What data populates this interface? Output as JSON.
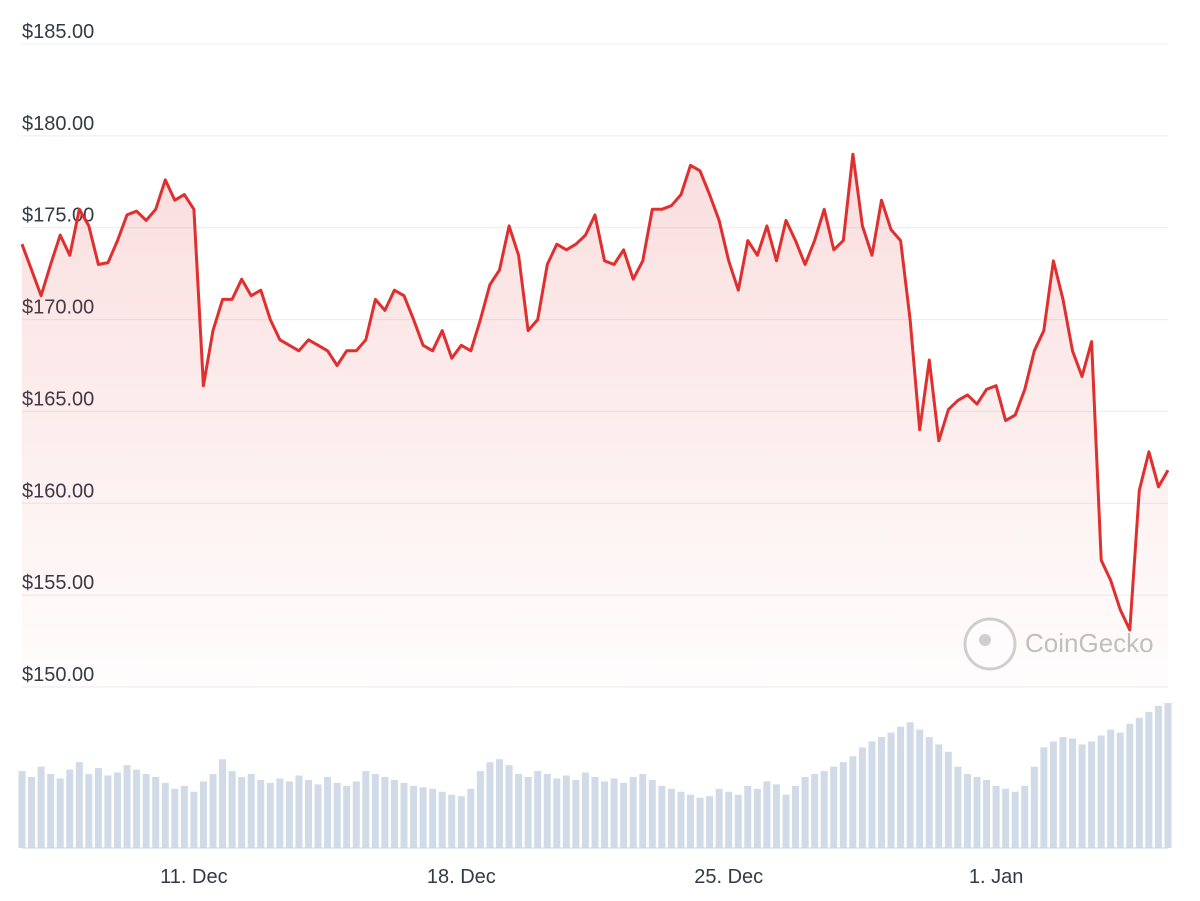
{
  "chart_data": {
    "type": "line",
    "watermark": "CoinGecko",
    "categories": [
      null,
      null,
      null,
      null,
      null,
      null,
      null,
      null,
      null,
      null,
      null,
      null,
      null,
      null,
      null,
      null,
      null,
      null,
      "11. Dec",
      null,
      null,
      null,
      null,
      null,
      null,
      null,
      null,
      null,
      null,
      null,
      null,
      null,
      null,
      null,
      null,
      null,
      null,
      null,
      null,
      null,
      null,
      null,
      null,
      null,
      null,
      null,
      "18. Dec",
      null,
      null,
      null,
      null,
      null,
      null,
      null,
      null,
      null,
      null,
      null,
      null,
      null,
      null,
      null,
      null,
      null,
      null,
      null,
      null,
      null,
      null,
      null,
      null,
      null,
      null,
      null,
      "25. Dec",
      null,
      null,
      null,
      null,
      null,
      null,
      null,
      null,
      null,
      null,
      null,
      null,
      null,
      null,
      null,
      null,
      null,
      null,
      null,
      null,
      null,
      null,
      null,
      null,
      null,
      null,
      null,
      "1. Jan",
      null,
      null,
      null,
      null,
      null,
      null,
      null,
      null,
      null,
      null,
      null,
      null,
      null,
      null,
      null,
      null,
      null,
      null
    ],
    "series": [
      {
        "color": "#e02f2f",
        "values": [
          174.1,
          172.7,
          171.3,
          173,
          174.6,
          173.5,
          176,
          175.1,
          173,
          173.1,
          174.3,
          175.7,
          175.9,
          175.4,
          176,
          177.6,
          176.5,
          176.8,
          176,
          166.4,
          169.4,
          171.1,
          171.1,
          172.2,
          171.3,
          171.6,
          170,
          168.9,
          168.6,
          168.3,
          168.9,
          168.6,
          168.3,
          167.5,
          168.3,
          168.3,
          168.9,
          171.1,
          170.5,
          171.6,
          171.3,
          170,
          168.6,
          168.3,
          169.4,
          167.9,
          168.6,
          168.3,
          170,
          171.9,
          172.7,
          175.1,
          173.5,
          169.4,
          170,
          173,
          174.1,
          173.8,
          174.1,
          174.6,
          175.7,
          173.2,
          173,
          173.8,
          172.2,
          173.2,
          176,
          176,
          176.2,
          176.8,
          178.4,
          178.1,
          176.8,
          175.4,
          173.2,
          171.6,
          174.3,
          173.5,
          175.1,
          173.2,
          175.4,
          174.3,
          173,
          174.3,
          176,
          173.8,
          174.3,
          179,
          175.1,
          173.5,
          176.5,
          174.9,
          174.3,
          170,
          164,
          167.8,
          163.4,
          165.1,
          165.6,
          165.9,
          165.4,
          166.2,
          166.4,
          164.5,
          164.8,
          166.2,
          168.3,
          169.4,
          173.2,
          171.1,
          168.3,
          166.9,
          168.8,
          156.9,
          155.8,
          154.2,
          153.1,
          160.7,
          162.8,
          160.9,
          161.8
        ]
      }
    ],
    "volume": {
      "color": "#c9d4e3",
      "values": [
        52,
        48,
        55,
        50,
        47,
        53,
        58,
        50,
        54,
        49,
        51,
        56,
        53,
        50,
        48,
        44,
        40,
        42,
        38,
        45,
        50,
        60,
        52,
        48,
        50,
        46,
        44,
        47,
        45,
        49,
        46,
        43,
        48,
        44,
        42,
        45,
        52,
        50,
        48,
        46,
        44,
        42,
        41,
        40,
        38,
        36,
        35,
        40,
        52,
        58,
        60,
        56,
        50,
        48,
        52,
        50,
        47,
        49,
        46,
        51,
        48,
        45,
        47,
        44,
        48,
        50,
        46,
        42,
        40,
        38,
        36,
        34,
        35,
        40,
        38,
        36,
        42,
        40,
        45,
        43,
        36,
        42,
        48,
        50,
        52,
        55,
        58,
        62,
        68,
        72,
        75,
        78,
        82,
        85,
        80,
        75,
        70,
        65,
        55,
        50,
        48,
        46,
        42,
        40,
        38,
        42,
        55,
        68,
        72,
        75,
        74,
        70,
        72,
        76,
        80,
        78,
        84,
        88,
        92,
        96,
        98
      ]
    },
    "ylim": [
      150,
      185
    ],
    "yticks": [
      {
        "value": 150,
        "label": "$150.00"
      },
      {
        "value": 155,
        "label": "$155.00"
      },
      {
        "value": 160,
        "label": "$160.00"
      },
      {
        "value": 165,
        "label": "$165.00"
      },
      {
        "value": 170,
        "label": "$170.00"
      },
      {
        "value": 175,
        "label": "$175.00"
      },
      {
        "value": 180,
        "label": "$180.00"
      },
      {
        "value": 185,
        "label": "$185.00"
      }
    ],
    "grid": true
  }
}
